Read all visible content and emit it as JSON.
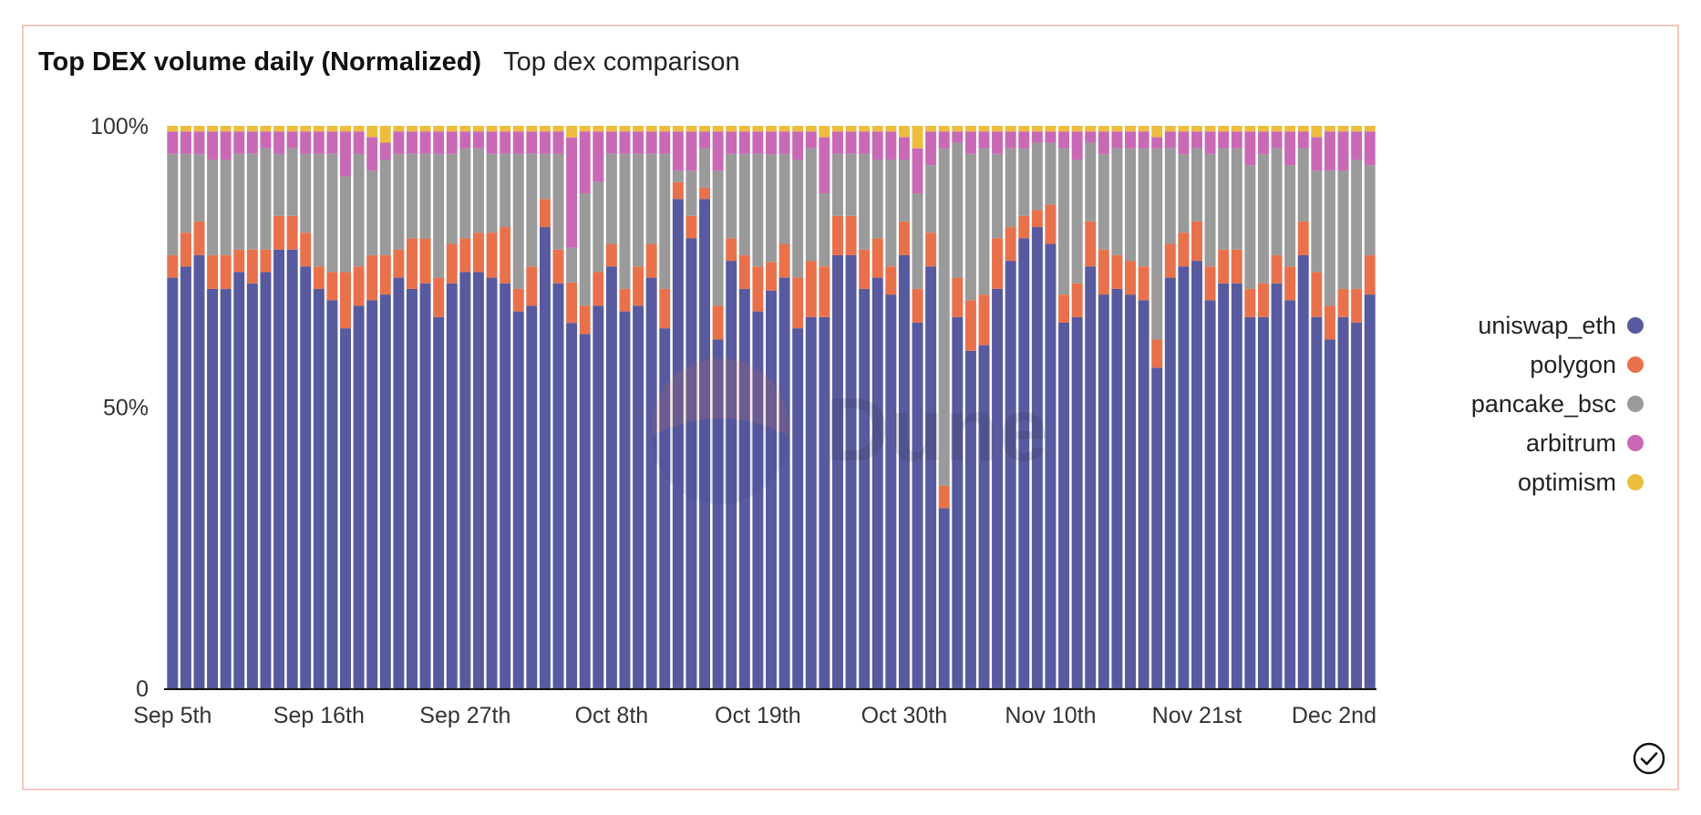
{
  "header": {
    "title": "Top DEX volume daily (Normalized)",
    "subtitle": "Top dex comparison"
  },
  "watermark": "Dune",
  "colors": {
    "uniswap_eth": "#575a9e",
    "polygon": "#e8714c",
    "pancake_bsc": "#9a9a9a",
    "arbitrum": "#c969b6",
    "optimism": "#edbe3e"
  },
  "chart_data": {
    "type": "bar",
    "stacked": true,
    "normalized": true,
    "title": "Top DEX volume daily (Normalized)",
    "subtitle": "Top dex comparison",
    "xlabel": "",
    "ylabel": "",
    "ylim": [
      0,
      100
    ],
    "y_ticks": [
      {
        "value": 0,
        "label": "0"
      },
      {
        "value": 50,
        "label": "50%"
      },
      {
        "value": 100,
        "label": "100%"
      }
    ],
    "x_ticks": [
      {
        "index": 0,
        "label": "Sep 5th"
      },
      {
        "index": 11,
        "label": "Sep 16th"
      },
      {
        "index": 22,
        "label": "Sep 27th"
      },
      {
        "index": 33,
        "label": "Oct 8th"
      },
      {
        "index": 44,
        "label": "Oct 19th"
      },
      {
        "index": 55,
        "label": "Oct 30th"
      },
      {
        "index": 66,
        "label": "Nov 10th"
      },
      {
        "index": 77,
        "label": "Nov 21st"
      },
      {
        "index": 88,
        "label": "Dec 2nd"
      }
    ],
    "categories": [
      "Sep 5",
      "Sep 6",
      "Sep 7",
      "Sep 8",
      "Sep 9",
      "Sep 10",
      "Sep 11",
      "Sep 12",
      "Sep 13",
      "Sep 14",
      "Sep 15",
      "Sep 16",
      "Sep 17",
      "Sep 18",
      "Sep 19",
      "Sep 20",
      "Sep 21",
      "Sep 22",
      "Sep 23",
      "Sep 24",
      "Sep 25",
      "Sep 26",
      "Sep 27",
      "Sep 28",
      "Sep 29",
      "Sep 30",
      "Oct 1",
      "Oct 2",
      "Oct 3",
      "Oct 4",
      "Oct 5",
      "Oct 6",
      "Oct 7",
      "Oct 8",
      "Oct 9",
      "Oct 10",
      "Oct 11",
      "Oct 12",
      "Oct 13",
      "Oct 14",
      "Oct 15",
      "Oct 16",
      "Oct 17",
      "Oct 18",
      "Oct 19",
      "Oct 20",
      "Oct 21",
      "Oct 22",
      "Oct 23",
      "Oct 24",
      "Oct 25",
      "Oct 26",
      "Oct 27",
      "Oct 28",
      "Oct 29",
      "Oct 30",
      "Oct 31",
      "Nov 1",
      "Nov 2",
      "Nov 3",
      "Nov 4",
      "Nov 5",
      "Nov 6",
      "Nov 7",
      "Nov 8",
      "Nov 9",
      "Nov 10",
      "Nov 11",
      "Nov 12",
      "Nov 13",
      "Nov 14",
      "Nov 15",
      "Nov 16",
      "Nov 17",
      "Nov 18",
      "Nov 19",
      "Nov 20",
      "Nov 21",
      "Nov 22",
      "Nov 23",
      "Nov 24",
      "Nov 25",
      "Nov 26",
      "Nov 27",
      "Nov 28",
      "Nov 29",
      "Nov 30",
      "Dec 1",
      "Dec 2",
      "Dec 3",
      "Dec 4"
    ],
    "legend_position": "right",
    "series": [
      {
        "name": "uniswap_eth",
        "color": "#575a9e",
        "values": [
          73,
          75,
          77,
          71,
          71,
          74,
          72,
          74,
          78,
          78,
          75,
          71,
          69,
          64,
          68,
          69,
          70,
          73,
          71,
          72,
          66,
          72,
          74,
          74,
          73,
          72,
          67,
          68,
          82,
          72,
          63,
          63,
          68,
          75,
          67,
          68,
          73,
          64,
          87,
          80,
          87,
          62,
          76,
          71,
          67,
          70,
          73,
          64,
          66,
          66,
          77,
          77,
          71,
          73,
          70,
          77,
          65,
          75,
          32,
          66,
          60,
          61,
          71,
          76,
          80,
          82,
          79,
          65,
          66,
          75,
          70,
          71,
          70,
          69,
          57,
          73,
          75,
          76,
          69,
          72,
          72,
          66,
          66,
          72,
          69,
          77,
          66,
          62,
          66,
          65,
          70
        ]
      },
      {
        "name": "polygon",
        "color": "#e8714c",
        "values": [
          4,
          6,
          6,
          6,
          6,
          4,
          6,
          4,
          6,
          6,
          6,
          4,
          5,
          10,
          7,
          8,
          7,
          5,
          9,
          8,
          7,
          7,
          6,
          7,
          8,
          10,
          4,
          7,
          5,
          6,
          7,
          5,
          6,
          4,
          4,
          7,
          6,
          7,
          3,
          4,
          2,
          6,
          4,
          6,
          8,
          5,
          6,
          9,
          10,
          9,
          7,
          7,
          7,
          7,
          5,
          6,
          6,
          6,
          4,
          7,
          9,
          9,
          9,
          6,
          4,
          3,
          7,
          5,
          6,
          8,
          8,
          6,
          6,
          6,
          5,
          6,
          6,
          7,
          6,
          6,
          6,
          5,
          6,
          5,
          6,
          6,
          8,
          6,
          5,
          6,
          7
        ]
      },
      {
        "name": "pancake_bsc",
        "color": "#9a9a9a",
        "values": [
          18,
          14,
          12,
          17,
          17,
          17,
          17,
          18,
          11,
          12,
          14,
          20,
          21,
          17,
          20,
          15,
          17,
          17,
          15,
          15,
          22,
          16,
          16,
          15,
          14,
          13,
          24,
          20,
          8,
          17,
          6,
          20,
          16,
          16,
          24,
          20,
          16,
          24,
          2,
          8,
          7,
          24,
          15,
          18,
          20,
          19,
          16,
          21,
          20,
          13,
          11,
          11,
          17,
          14,
          19,
          11,
          17,
          12,
          60,
          24,
          26,
          26,
          15,
          14,
          12,
          12,
          11,
          26,
          22,
          14,
          17,
          19,
          20,
          21,
          34,
          17,
          14,
          13,
          20,
          18,
          18,
          22,
          23,
          19,
          18,
          13,
          18,
          24,
          21,
          23,
          16
        ]
      },
      {
        "name": "arbitrum",
        "color": "#c969b6",
        "values": [
          4,
          4,
          4,
          5,
          5,
          4,
          4,
          3,
          4,
          3,
          4,
          4,
          4,
          8,
          4,
          6,
          3,
          4,
          4,
          4,
          4,
          4,
          3,
          3,
          4,
          4,
          4,
          4,
          4,
          4,
          19,
          11,
          9,
          4,
          4,
          4,
          4,
          4,
          7,
          7,
          3,
          7,
          4,
          4,
          4,
          4,
          4,
          5,
          3,
          10,
          4,
          4,
          4,
          5,
          5,
          4,
          8,
          6,
          3,
          2,
          4,
          3,
          4,
          3,
          3,
          2,
          2,
          3,
          5,
          2,
          4,
          3,
          3,
          3,
          2,
          3,
          4,
          3,
          4,
          3,
          3,
          6,
          4,
          3,
          6,
          3,
          6,
          7,
          7,
          5,
          6
        ]
      },
      {
        "name": "optimism",
        "color": "#edbe3e",
        "values": [
          1,
          1,
          1,
          1,
          1,
          1,
          1,
          1,
          1,
          1,
          1,
          1,
          1,
          1,
          1,
          2,
          3,
          1,
          1,
          1,
          1,
          1,
          1,
          1,
          1,
          1,
          1,
          1,
          1,
          1,
          2,
          1,
          1,
          1,
          1,
          1,
          1,
          1,
          1,
          1,
          1,
          1,
          1,
          1,
          1,
          1,
          1,
          1,
          1,
          2,
          1,
          1,
          1,
          1,
          1,
          2,
          4,
          1,
          1,
          1,
          1,
          1,
          1,
          1,
          1,
          1,
          1,
          1,
          1,
          1,
          1,
          1,
          1,
          1,
          2,
          1,
          1,
          1,
          1,
          1,
          1,
          1,
          1,
          1,
          1,
          1,
          2,
          1,
          1,
          1,
          1
        ]
      }
    ]
  }
}
